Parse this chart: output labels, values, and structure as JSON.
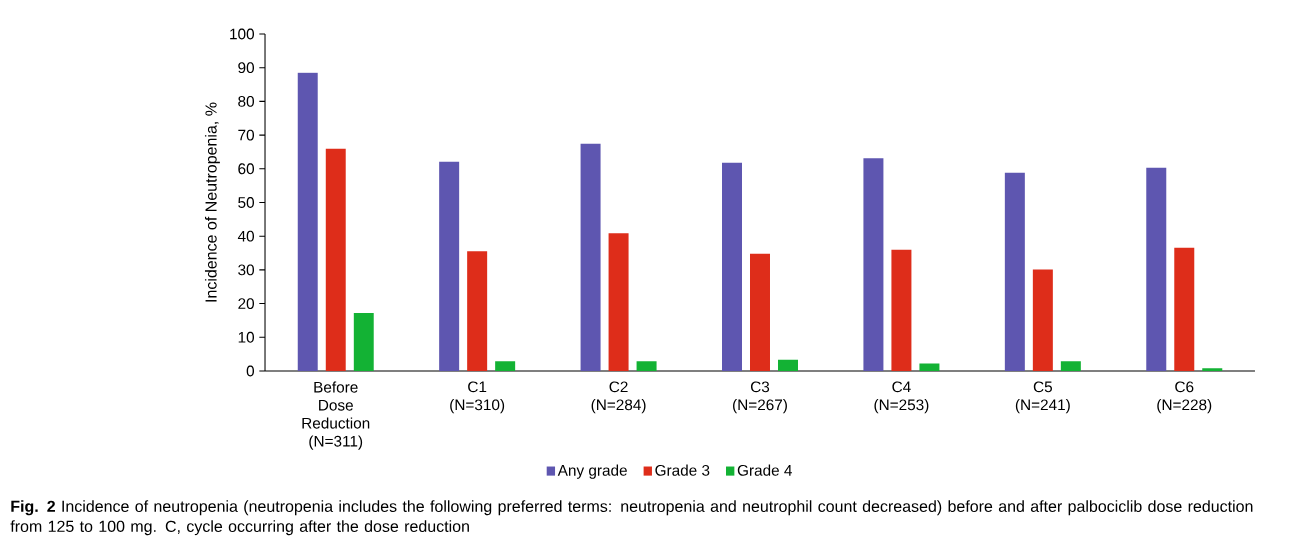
{
  "chart_data": {
    "type": "bar",
    "ylabel": "Incidence of Neutropenia, %",
    "categories": [
      "Before Dose Reduction (N=311)",
      "C1 (N=310)",
      "C2 (N=284)",
      "C3 (N=267)",
      "C4 (N=253)",
      "C5 (N=241)",
      "C6 (N=228)"
    ],
    "series": [
      {
        "name": "Any grade",
        "color": "#5e56b0",
        "values": [
          88.5,
          62.1,
          67.4,
          61.8,
          63.1,
          58.8,
          60.3
        ]
      },
      {
        "name": "Grade 3",
        "color": "#de2d1a",
        "values": [
          66.0,
          35.5,
          40.9,
          34.8,
          36.0,
          30.1,
          36.6
        ]
      },
      {
        "name": "Grade 4",
        "color": "#13b234",
        "values": [
          17.2,
          2.9,
          2.9,
          3.3,
          2.2,
          2.9,
          0.8
        ]
      }
    ],
    "ylim": [
      0,
      100
    ],
    "yticks": [
      0,
      10,
      20,
      30,
      40,
      50,
      60,
      70,
      80,
      90,
      100
    ],
    "legend": "bottom",
    "grid": false,
    "annotations": [
      "**Fig. 2** Incidence of neutropenia (neutropenia includes the following preferred terms: neutropenia and neutrophil count decreased) before and after palbociclib dose reduction from 125 to 100 mg. C, cycle occurring after the dose reduction"
    ]
  }
}
